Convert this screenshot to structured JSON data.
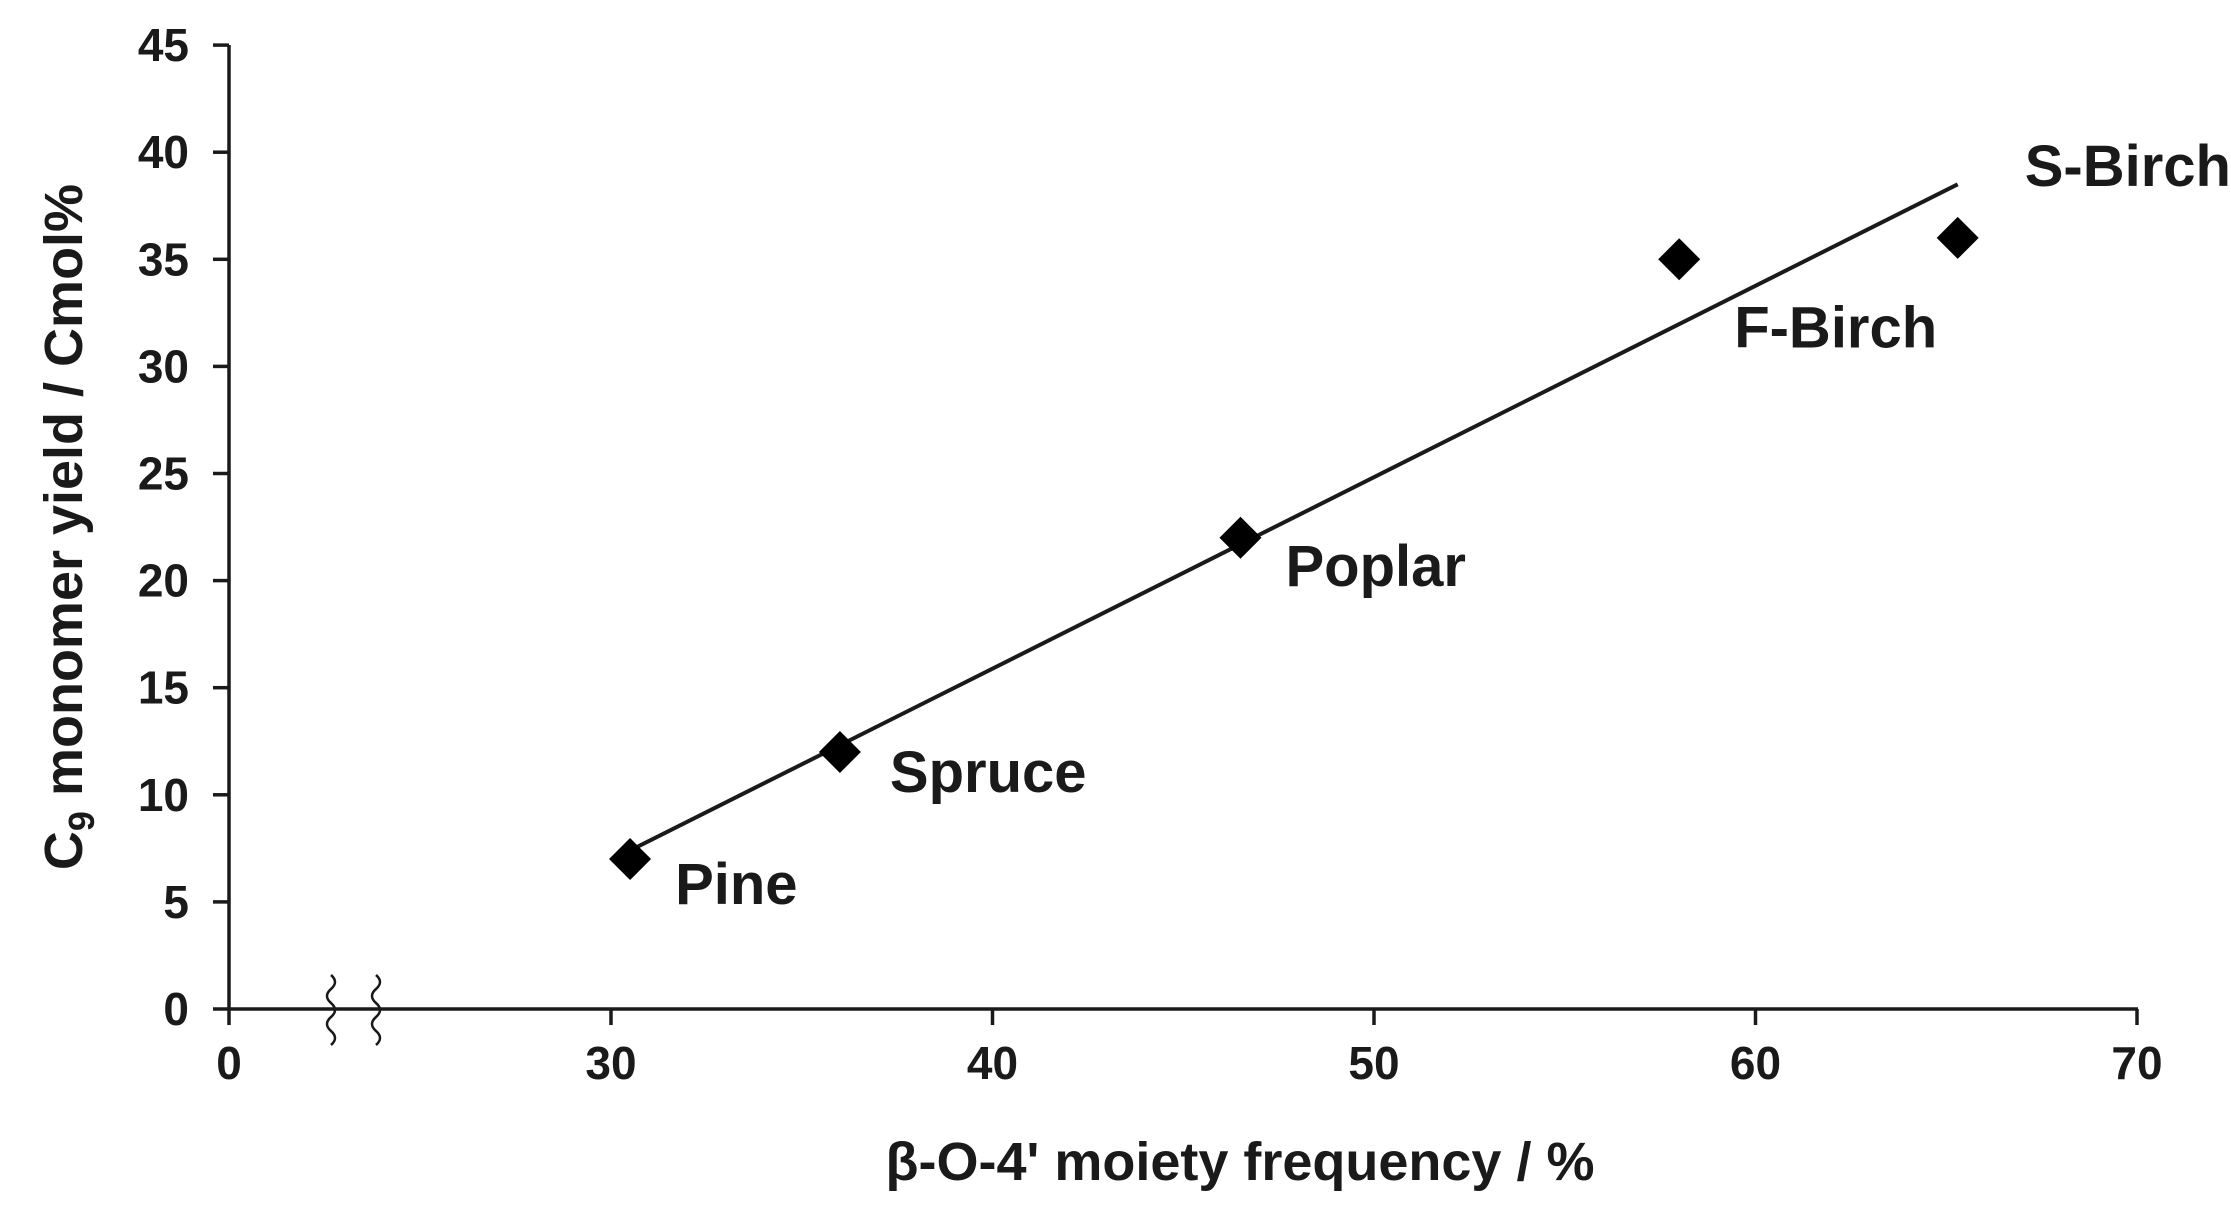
{
  "chart_data": {
    "type": "scatter",
    "xlabel": "β-O-4' moiety frequency / %",
    "ylabel_main": "C",
    "ylabel_sub": "9",
    "ylabel_rest": " monomer yield / Cmol%",
    "xlim": [
      0,
      70
    ],
    "ylim": [
      0,
      45
    ],
    "x_ticks": [
      "0",
      "30",
      "40",
      "50",
      "60",
      "70"
    ],
    "x_tick_values": [
      0,
      30,
      40,
      50,
      60,
      70
    ],
    "y_ticks": [
      "0",
      "5",
      "10",
      "15",
      "20",
      "25",
      "30",
      "35",
      "40",
      "45"
    ],
    "y_tick_values": [
      0,
      5,
      10,
      15,
      20,
      25,
      30,
      35,
      40,
      45
    ],
    "axis_break": [
      0,
      30
    ],
    "grid": false,
    "points": [
      {
        "label": "Pine",
        "x": 30.5,
        "y": 7
      },
      {
        "label": "Spruce",
        "x": 36,
        "y": 12
      },
      {
        "label": "Poplar",
        "x": 46.5,
        "y": 22
      },
      {
        "label": "F-Birch",
        "x": 58,
        "y": 35
      },
      {
        "label": "S-Birch",
        "x": 65.3,
        "y": 36
      }
    ],
    "trendline": {
      "x": [
        30.5,
        65.3
      ],
      "y": [
        7.4,
        38.5
      ]
    }
  }
}
